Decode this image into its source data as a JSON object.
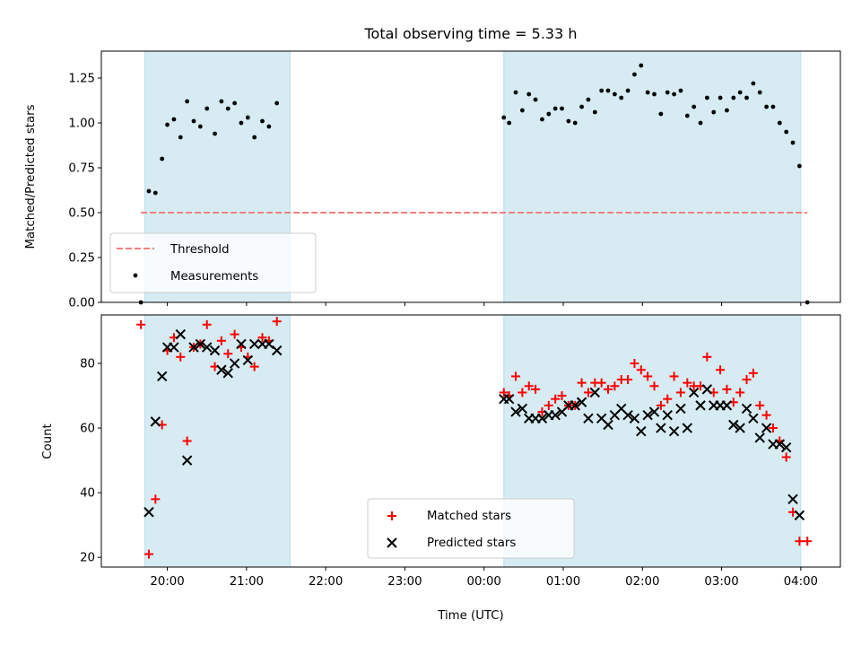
{
  "chart_data": [
    {
      "type": "scatter",
      "title": "Total observing time = 5.33 h",
      "ylabel": "Matched/Predicted stars",
      "xlim": [
        "19:10",
        "04:30"
      ],
      "ylim": [
        0,
        1.4
      ],
      "yticks": [
        "0.00",
        "0.25",
        "0.50",
        "0.75",
        "1.00",
        "1.25"
      ],
      "shaded_intervals": [
        [
          "19:43",
          "21:33"
        ],
        [
          "00:15",
          "04:00"
        ]
      ],
      "legend_position": "lower-left",
      "series": [
        {
          "name": "Threshold",
          "style": "dashed-line",
          "color": "#f08080",
          "x": [
            "19:40",
            "04:05"
          ],
          "y": [
            0.5,
            0.5
          ]
        },
        {
          "name": "Measurements",
          "style": "dot",
          "color": "#000000",
          "points": [
            [
              "19:40",
              0.0
            ],
            [
              "19:46",
              0.62
            ],
            [
              "19:51",
              0.61
            ],
            [
              "19:56",
              0.8
            ],
            [
              "20:00",
              0.99
            ],
            [
              "20:05",
              1.02
            ],
            [
              "20:10",
              0.92
            ],
            [
              "20:15",
              1.12
            ],
            [
              "20:20",
              1.01
            ],
            [
              "20:25",
              0.98
            ],
            [
              "20:30",
              1.08
            ],
            [
              "20:36",
              0.94
            ],
            [
              "20:41",
              1.12
            ],
            [
              "20:46",
              1.08
            ],
            [
              "20:51",
              1.11
            ],
            [
              "20:56",
              1.0
            ],
            [
              "21:01",
              1.03
            ],
            [
              "21:06",
              0.92
            ],
            [
              "21:12",
              1.01
            ],
            [
              "21:17",
              0.98
            ],
            [
              "21:23",
              1.11
            ],
            [
              "00:15",
              1.03
            ],
            [
              "00:19",
              1.0
            ],
            [
              "00:24",
              1.17
            ],
            [
              "00:29",
              1.07
            ],
            [
              "00:34",
              1.16
            ],
            [
              "00:39",
              1.13
            ],
            [
              "00:44",
              1.02
            ],
            [
              "00:49",
              1.05
            ],
            [
              "00:54",
              1.08
            ],
            [
              "00:59",
              1.08
            ],
            [
              "01:04",
              1.01
            ],
            [
              "01:09",
              1.0
            ],
            [
              "01:14",
              1.09
            ],
            [
              "01:19",
              1.13
            ],
            [
              "01:24",
              1.06
            ],
            [
              "01:29",
              1.18
            ],
            [
              "01:34",
              1.18
            ],
            [
              "01:39",
              1.16
            ],
            [
              "01:44",
              1.14
            ],
            [
              "01:49",
              1.18
            ],
            [
              "01:54",
              1.27
            ],
            [
              "01:59",
              1.32
            ],
            [
              "02:04",
              1.17
            ],
            [
              "02:09",
              1.16
            ],
            [
              "02:14",
              1.05
            ],
            [
              "02:19",
              1.17
            ],
            [
              "02:24",
              1.16
            ],
            [
              "02:29",
              1.18
            ],
            [
              "02:34",
              1.04
            ],
            [
              "02:39",
              1.09
            ],
            [
              "02:44",
              1.0
            ],
            [
              "02:49",
              1.14
            ],
            [
              "02:54",
              1.06
            ],
            [
              "02:59",
              1.14
            ],
            [
              "03:04",
              1.07
            ],
            [
              "03:09",
              1.14
            ],
            [
              "03:14",
              1.17
            ],
            [
              "03:19",
              1.14
            ],
            [
              "03:24",
              1.22
            ],
            [
              "03:29",
              1.17
            ],
            [
              "03:34",
              1.09
            ],
            [
              "03:39",
              1.09
            ],
            [
              "03:44",
              1.0
            ],
            [
              "03:49",
              0.95
            ],
            [
              "03:54",
              0.89
            ],
            [
              "03:59",
              0.76
            ],
            [
              "04:05",
              0.0
            ]
          ]
        }
      ]
    },
    {
      "type": "scatter",
      "xlabel": "Time (UTC)",
      "ylabel": "Count",
      "xlim": [
        "19:10",
        "04:30"
      ],
      "ylim": [
        17,
        95
      ],
      "yticks": [
        "20",
        "40",
        "60",
        "80"
      ],
      "xticks": [
        "20:00",
        "21:00",
        "22:00",
        "23:00",
        "00:00",
        "01:00",
        "02:00",
        "03:00",
        "04:00"
      ],
      "shaded_intervals": [
        [
          "19:43",
          "21:33"
        ],
        [
          "00:15",
          "04:00"
        ]
      ],
      "legend_position": "lower-center",
      "series": [
        {
          "name": "Matched stars",
          "style": "plus",
          "color": "#ff0000",
          "points": [
            [
              "19:40",
              92
            ],
            [
              "19:46",
              21
            ],
            [
              "19:51",
              38
            ],
            [
              "19:56",
              61
            ],
            [
              "20:00",
              84
            ],
            [
              "20:05",
              88
            ],
            [
              "20:10",
              82
            ],
            [
              "20:15",
              56
            ],
            [
              "20:20",
              85
            ],
            [
              "20:25",
              86
            ],
            [
              "20:30",
              92
            ],
            [
              "20:36",
              79
            ],
            [
              "20:41",
              87
            ],
            [
              "20:46",
              83
            ],
            [
              "20:51",
              89
            ],
            [
              "20:56",
              85
            ],
            [
              "21:01",
              82
            ],
            [
              "21:06",
              79
            ],
            [
              "21:12",
              88
            ],
            [
              "21:17",
              87
            ],
            [
              "21:23",
              93
            ],
            [
              "00:15",
              71
            ],
            [
              "00:19",
              70
            ],
            [
              "00:24",
              76
            ],
            [
              "00:29",
              71
            ],
            [
              "00:34",
              73
            ],
            [
              "00:39",
              72
            ],
            [
              "00:44",
              65
            ],
            [
              "00:49",
              67
            ],
            [
              "00:54",
              69
            ],
            [
              "00:59",
              70
            ],
            [
              "01:04",
              67
            ],
            [
              "01:09",
              67
            ],
            [
              "01:14",
              74
            ],
            [
              "01:19",
              71
            ],
            [
              "01:24",
              74
            ],
            [
              "01:29",
              74
            ],
            [
              "01:34",
              72
            ],
            [
              "01:39",
              73
            ],
            [
              "01:44",
              75
            ],
            [
              "01:49",
              75
            ],
            [
              "01:54",
              80
            ],
            [
              "01:59",
              78
            ],
            [
              "02:04",
              76
            ],
            [
              "02:09",
              73
            ],
            [
              "02:14",
              67
            ],
            [
              "02:19",
              69
            ],
            [
              "02:24",
              76
            ],
            [
              "02:29",
              71
            ],
            [
              "02:34",
              74
            ],
            [
              "02:39",
              73
            ],
            [
              "02:44",
              73
            ],
            [
              "02:49",
              82
            ],
            [
              "02:54",
              71
            ],
            [
              "02:59",
              78
            ],
            [
              "03:04",
              72
            ],
            [
              "03:09",
              68
            ],
            [
              "03:14",
              71
            ],
            [
              "03:19",
              75
            ],
            [
              "03:24",
              77
            ],
            [
              "03:29",
              67
            ],
            [
              "03:34",
              64
            ],
            [
              "03:39",
              60
            ],
            [
              "03:44",
              56
            ],
            [
              "03:49",
              51
            ],
            [
              "03:54",
              34
            ],
            [
              "03:59",
              25
            ],
            [
              "04:05",
              25
            ]
          ]
        },
        {
          "name": "Predicted stars",
          "style": "x",
          "color": "#000000",
          "points": [
            [
              "19:46",
              34
            ],
            [
              "19:51",
              62
            ],
            [
              "19:56",
              76
            ],
            [
              "20:00",
              85
            ],
            [
              "20:05",
              85
            ],
            [
              "20:10",
              89
            ],
            [
              "20:15",
              50
            ],
            [
              "20:20",
              85
            ],
            [
              "20:25",
              86
            ],
            [
              "20:30",
              85
            ],
            [
              "20:36",
              84
            ],
            [
              "20:41",
              78
            ],
            [
              "20:46",
              77
            ],
            [
              "20:51",
              80
            ],
            [
              "20:56",
              86
            ],
            [
              "21:01",
              81
            ],
            [
              "21:06",
              86
            ],
            [
              "21:12",
              86
            ],
            [
              "21:17",
              86
            ],
            [
              "21:23",
              84
            ],
            [
              "00:15",
              69
            ],
            [
              "00:19",
              69
            ],
            [
              "00:24",
              65
            ],
            [
              "00:29",
              66
            ],
            [
              "00:34",
              63
            ],
            [
              "00:39",
              63
            ],
            [
              "00:44",
              63
            ],
            [
              "00:49",
              64
            ],
            [
              "00:54",
              64
            ],
            [
              "00:59",
              65
            ],
            [
              "01:04",
              67
            ],
            [
              "01:09",
              67
            ],
            [
              "01:14",
              68
            ],
            [
              "01:19",
              63
            ],
            [
              "01:24",
              71
            ],
            [
              "01:29",
              63
            ],
            [
              "01:34",
              61
            ],
            [
              "01:39",
              64
            ],
            [
              "01:44",
              66
            ],
            [
              "01:49",
              64
            ],
            [
              "01:54",
              63
            ],
            [
              "01:59",
              59
            ],
            [
              "02:04",
              64
            ],
            [
              "02:09",
              65
            ],
            [
              "02:14",
              60
            ],
            [
              "02:19",
              64
            ],
            [
              "02:24",
              59
            ],
            [
              "02:29",
              66
            ],
            [
              "02:34",
              60
            ],
            [
              "02:39",
              71
            ],
            [
              "02:44",
              67
            ],
            [
              "02:49",
              72
            ],
            [
              "02:54",
              67
            ],
            [
              "02:59",
              67
            ],
            [
              "03:04",
              67
            ],
            [
              "03:09",
              61
            ],
            [
              "03:14",
              60
            ],
            [
              "03:19",
              66
            ],
            [
              "03:24",
              63
            ],
            [
              "03:29",
              57
            ],
            [
              "03:34",
              60
            ],
            [
              "03:39",
              55
            ],
            [
              "03:44",
              55
            ],
            [
              "03:49",
              54
            ],
            [
              "03:54",
              38
            ],
            [
              "03:59",
              33
            ]
          ]
        }
      ]
    }
  ]
}
